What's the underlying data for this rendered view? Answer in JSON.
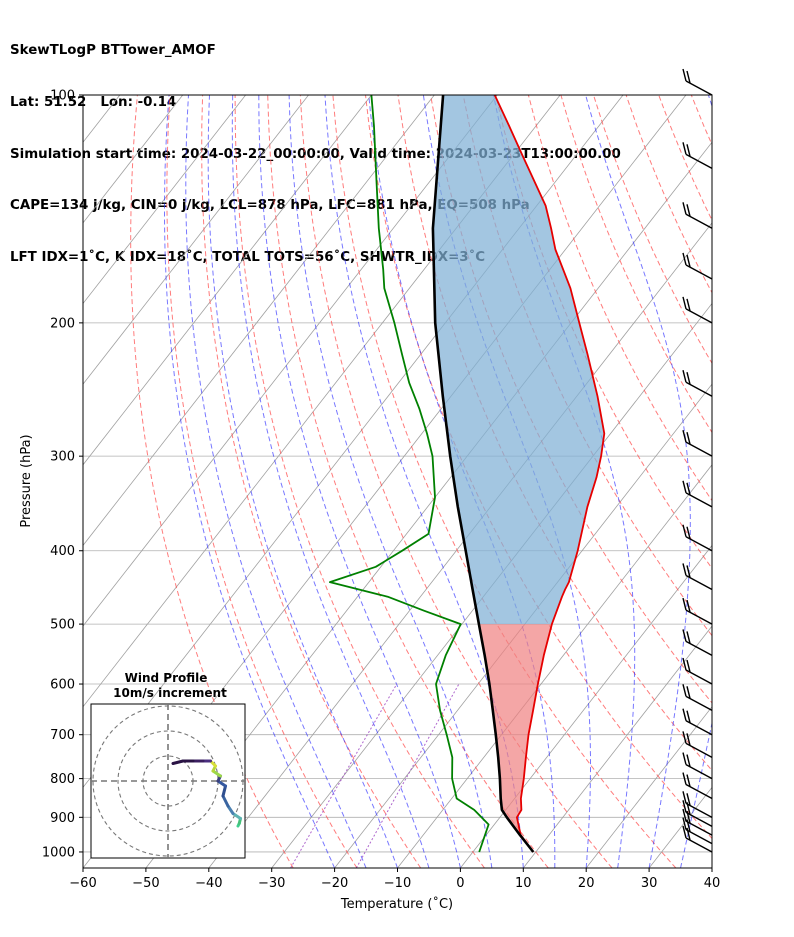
{
  "header": {
    "line1": "SkewTLogP BTTower_AMOF",
    "line2": "Lat: 51.52   Lon: -0.14",
    "line3": "Simulation start time: 2024-03-22_00:00:00, Valid time: 2024-03-23T13:00:00.00",
    "line4": "CAPE=134 j/kg, CIN=0 j/kg, LCL=878 hPa, LFC=881 hPa, EQ=508 hPa",
    "line5": "LFT IDX=1˚C, K IDX=18˚C, TOTAL TOTS=56˚C, SHWTR_IDX=3˚C"
  },
  "colors": {
    "temperature": "#e60000",
    "dewpoint": "#008000",
    "parcel": "#000000",
    "cape_fill": "#7fb0d6",
    "cin_fill": "#f08080",
    "isotherm": "#a0a0a0",
    "dry_adiabat": "#ff5050",
    "moist_adiabat": "#3030ff",
    "mixing_ratio": "#9a40c0",
    "grid": "#b0b0b0"
  },
  "chart_data": {
    "type": "line",
    "xlabel": "Temperature (˚C)",
    "ylabel": "Pressure (hPa)",
    "xlim": [
      -60,
      40
    ],
    "ylim": [
      1050,
      100
    ],
    "y_scale": "log",
    "grid": true,
    "x_ticks": [
      "−60",
      "−50",
      "−40",
      "−30",
      "−20",
      "−10",
      "0",
      "10",
      "20",
      "30",
      "40"
    ],
    "x_tick_values": [
      -60,
      -50,
      -40,
      -30,
      -20,
      -10,
      0,
      10,
      20,
      30,
      40
    ],
    "y_ticks": [
      "1000",
      "900",
      "800",
      "700",
      "600",
      "500",
      "400",
      "300",
      "200",
      "100"
    ],
    "y_tick_values": [
      1000,
      900,
      800,
      700,
      600,
      500,
      400,
      300,
      200,
      100
    ],
    "series": [
      {
        "key": "temperature",
        "pressure": [
          1000,
          950,
          900,
          880,
          850,
          800,
          750,
          700,
          650,
          600,
          550,
          500,
          460,
          450,
          440,
          400,
          350,
          320,
          300,
          280,
          250,
          220,
          200,
          180,
          160,
          150,
          140,
          120,
          110,
          100
        ],
        "values": [
          9.6,
          5.5,
          2.7,
          2.5,
          1.0,
          -1.0,
          -3.3,
          -5.7,
          -8.0,
          -10.5,
          -13.1,
          -15.7,
          -17.5,
          -17.9,
          -18.2,
          -20.7,
          -24.6,
          -26.8,
          -28.7,
          -31.0,
          -36.7,
          -43.5,
          -48.7,
          -54.4,
          -61.6,
          -64.9,
          -68.6,
          -78.6,
          -84.2,
          -90.4
        ]
      },
      {
        "key": "dewpoint",
        "pressure": [
          1000,
          920,
          880,
          850,
          800,
          750,
          700,
          650,
          600,
          550,
          500,
          480,
          460,
          440,
          420,
          400,
          380,
          340,
          300,
          280,
          260,
          240,
          220,
          200,
          180,
          170,
          150,
          130,
          110,
          100
        ],
        "values": [
          1.0,
          -0.9,
          -5.0,
          -9.2,
          -12.4,
          -15.0,
          -18.7,
          -22.8,
          -26.7,
          -28.7,
          -30.2,
          -37.7,
          -45.2,
          -56.2,
          -50.8,
          -48.6,
          -46.5,
          -50.0,
          -55.5,
          -59.2,
          -63.4,
          -68.3,
          -73.0,
          -78.1,
          -84.0,
          -86.5,
          -92.3,
          -98.5,
          -105.7,
          -110.0
        ]
      },
      {
        "key": "parcel",
        "pressure": [
          1000,
          950,
          900,
          880,
          850,
          800,
          750,
          700,
          650,
          600,
          550,
          500,
          450,
          400,
          350,
          300,
          250,
          200,
          150,
          100
        ],
        "values": [
          9.6,
          5.4,
          1.1,
          -0.6,
          -2.2,
          -4.8,
          -7.7,
          -10.9,
          -14.4,
          -18.2,
          -22.5,
          -27.3,
          -32.6,
          -38.5,
          -45.2,
          -52.7,
          -61.3,
          -71.6,
          -83.7,
          -98.6
        ]
      }
    ],
    "cape": {
      "from_hpa": 500,
      "to_hpa": 100
    },
    "cin": {
      "from_hpa": 1000,
      "to_hpa": 500
    },
    "wind_barbs_hpa": [
      1000,
      975,
      950,
      925,
      900,
      850,
      800,
      750,
      700,
      650,
      600,
      550,
      500,
      450,
      400,
      350,
      300,
      250,
      200,
      175,
      150,
      125,
      100
    ],
    "hodograph": {
      "title_line1": "Wind Profile",
      "title_line2": "10m/s increment",
      "rings": 3,
      "u": [
        28,
        28.5,
        29,
        26,
        24,
        22,
        23,
        20,
        21,
        18,
        19,
        17,
        14,
        10,
        6,
        2
      ],
      "v": [
        -18,
        -17,
        -15,
        -13,
        -10,
        -6,
        -2,
        0,
        2,
        4,
        6,
        8,
        8,
        8,
        8,
        7
      ]
    }
  }
}
